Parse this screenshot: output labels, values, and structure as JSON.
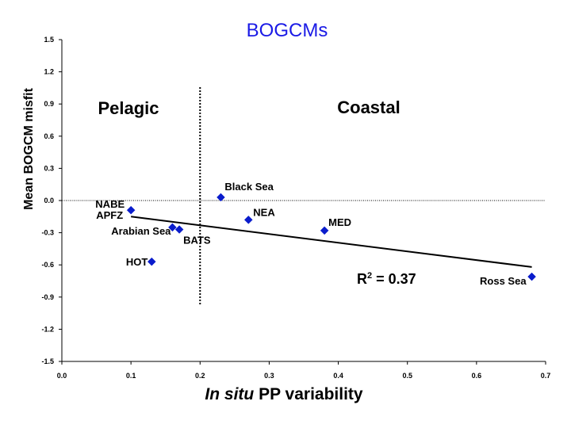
{
  "chart_data": {
    "type": "scatter",
    "title": "BOGCMs",
    "xlabel_italic": "In situ",
    "xlabel_rest": " PP variability",
    "ylabel": "Mean BOGCM misfit",
    "xlim": [
      0.0,
      0.7
    ],
    "ylim": [
      -1.5,
      1.5
    ],
    "xticks": [
      "0.0",
      "0.1",
      "0.2",
      "0.3",
      "0.4",
      "0.5",
      "0.6",
      "0.7"
    ],
    "yticks": [
      "1.5",
      "1.2",
      "0.9",
      "0.6",
      "0.3",
      "0.0",
      "-0.3",
      "-0.6",
      "-0.9",
      "-1.2",
      "-1.5"
    ],
    "points": [
      {
        "label": "NABE",
        "x": 0.1,
        "y": -0.09
      },
      {
        "label": "APFZ",
        "x": 0.1,
        "y": -0.09
      },
      {
        "label": "Arabian Sea",
        "x": 0.16,
        "y": -0.25
      },
      {
        "label": "BATS",
        "x": 0.17,
        "y": -0.27
      },
      {
        "label": "HOT",
        "x": 0.13,
        "y": -0.57
      },
      {
        "label": "Black Sea",
        "x": 0.23,
        "y": 0.03
      },
      {
        "label": "NEA",
        "x": 0.27,
        "y": -0.18
      },
      {
        "label": "MED",
        "x": 0.38,
        "y": -0.28
      },
      {
        "label": "Ross Sea",
        "x": 0.68,
        "y": -0.71
      }
    ],
    "trendline": {
      "x": [
        0.1,
        0.68
      ],
      "y": [
        -0.15,
        -0.62
      ]
    },
    "divider_x": 0.2,
    "zero_line_y": 0.0,
    "regions": [
      "Pelagic",
      "Coastal"
    ],
    "r2_prefix": "R",
    "r2_sup": "2",
    "r2_suffix": " = 0.37",
    "marker_color": "#0a1ccc",
    "title_color": "#1a1ae6",
    "grid": false,
    "legend": "none"
  }
}
